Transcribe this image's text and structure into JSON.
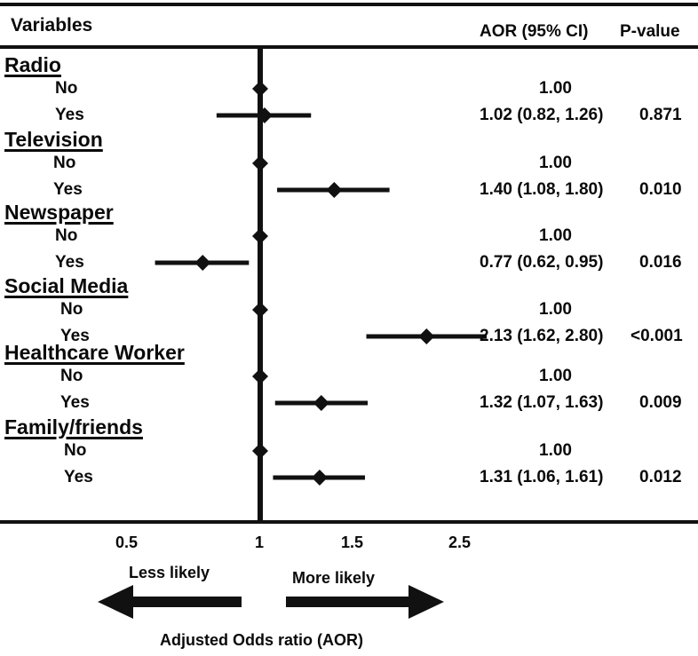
{
  "header": {
    "variables_label": "Variables",
    "aor_label": "AOR (95% CI)",
    "pvalue_label": "P-value"
  },
  "chart_data": {
    "type": "forest",
    "xlabel": "Adjusted Odds ratio (AOR)",
    "x_scale": "log",
    "xlim": [
      0.42,
      2.5
    ],
    "x_ticks": [
      {
        "value": 0.5,
        "label": "0.5"
      },
      {
        "value": 1,
        "label": "1"
      },
      {
        "value": 1.5,
        "label": "1.5"
      },
      {
        "value": 2.5,
        "label": "2.5"
      }
    ],
    "reference_line": 1,
    "direction_labels": {
      "left": "Less likely",
      "right": "More likely"
    },
    "groups": [
      {
        "name": "Radio",
        "rows": [
          {
            "level": "No",
            "aor": 1.0,
            "text": "1.00",
            "p": ""
          },
          {
            "level": "Yes",
            "aor": 1.02,
            "lower": 0.82,
            "upper": 1.26,
            "text": "1.02 (0.82, 1.26)",
            "p": "0.871"
          }
        ]
      },
      {
        "name": "Television",
        "rows": [
          {
            "level": "No",
            "aor": 1.0,
            "text": "1.00",
            "p": ""
          },
          {
            "level": "Yes",
            "aor": 1.4,
            "lower": 1.08,
            "upper": 1.8,
            "text": "1.40 (1.08, 1.80)",
            "p": "0.010"
          }
        ]
      },
      {
        "name": "Newspaper",
        "rows": [
          {
            "level": "No",
            "aor": 1.0,
            "text": "1.00",
            "p": ""
          },
          {
            "level": "Yes",
            "aor": 0.77,
            "lower": 0.62,
            "upper": 0.95,
            "text": "0.77 (0.62, 0.95)",
            "p": "0.016"
          }
        ]
      },
      {
        "name": "Social Media",
        "rows": [
          {
            "level": "No",
            "aor": 1.0,
            "text": "1.00",
            "p": ""
          },
          {
            "level": "Yes",
            "aor": 2.13,
            "lower": 1.62,
            "upper": 2.8,
            "text": "2.13 (1.62, 2.80)",
            "p": "<0.001"
          }
        ]
      },
      {
        "name": "Healthcare Worker",
        "rows": [
          {
            "level": "No",
            "aor": 1.0,
            "text": "1.00",
            "p": ""
          },
          {
            "level": "Yes",
            "aor": 1.32,
            "lower": 1.07,
            "upper": 1.63,
            "text": "1.32 (1.07, 1.63)",
            "p": "0.009"
          }
        ]
      },
      {
        "name": "Family/friends",
        "rows": [
          {
            "level": "No",
            "aor": 1.0,
            "text": "1.00",
            "p": ""
          },
          {
            "level": "Yes",
            "aor": 1.31,
            "lower": 1.06,
            "upper": 1.61,
            "text": "1.31 (1.06, 1.61)",
            "p": "0.012"
          }
        ]
      }
    ]
  }
}
